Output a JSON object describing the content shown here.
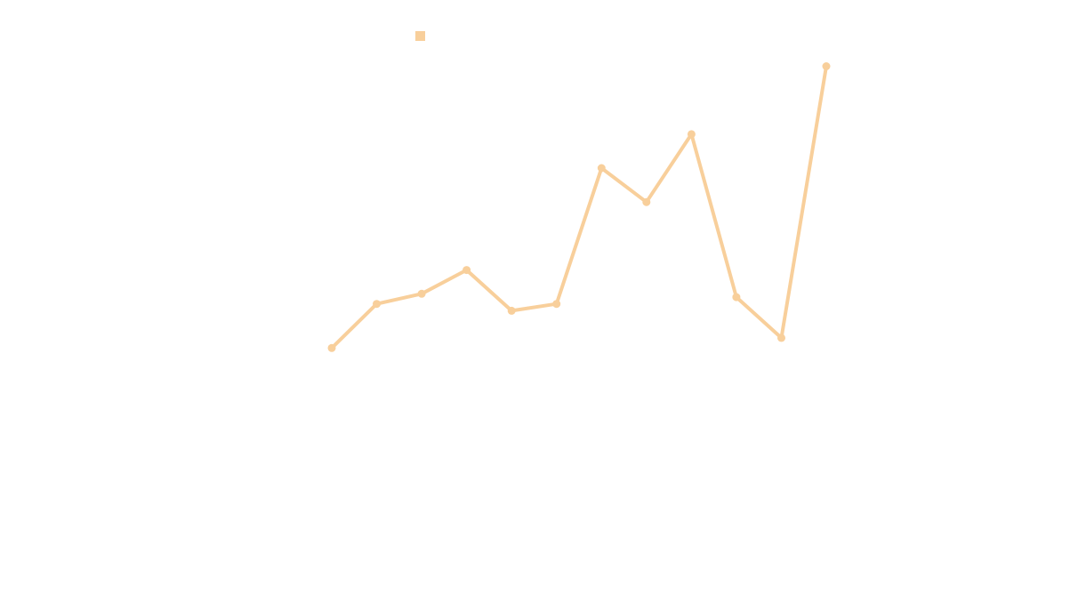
{
  "chart_data": {
    "type": "line",
    "title": "",
    "xlabel": "",
    "ylabel": "",
    "x": [
      1,
      2,
      3,
      4,
      5,
      6,
      7,
      8,
      9,
      10,
      11,
      12
    ],
    "series": [
      {
        "color": "#f8cf9b",
        "values": [
          14.6,
          17.2,
          17.8,
          19.2,
          16.8,
          17.2,
          25.2,
          23.2,
          27.2,
          17.6,
          15.2,
          31.2
        ]
      }
    ],
    "xlim": [
      1,
      12
    ],
    "ylim": [
      0,
      35
    ],
    "grid": false,
    "axes_visible": false,
    "legend": {
      "placement": "top-left",
      "entries": [
        {
          "label": "",
          "color": "#f8cf9b",
          "icon": "square-swatch-icon"
        }
      ]
    }
  }
}
